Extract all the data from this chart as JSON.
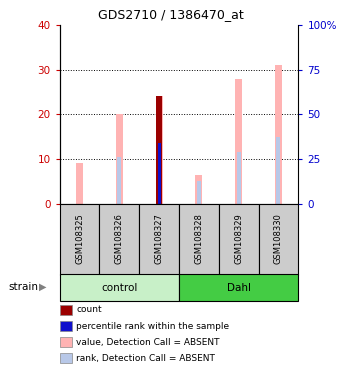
{
  "title": "GDS2710 / 1386470_at",
  "samples": [
    "GSM108325",
    "GSM108326",
    "GSM108327",
    "GSM108328",
    "GSM108329",
    "GSM108330"
  ],
  "ylim_left": [
    0,
    40
  ],
  "ylim_right": [
    0,
    100
  ],
  "yticks_left": [
    0,
    10,
    20,
    30,
    40
  ],
  "yticks_right": [
    0,
    25,
    50,
    75,
    100
  ],
  "ytick_labels_right": [
    "0",
    "25",
    "50",
    "75",
    "100%"
  ],
  "value_bars": [
    9.0,
    20.0,
    24.0,
    6.5,
    28.0,
    31.0
  ],
  "rank_bars": [
    null,
    10.5,
    13.5,
    5.0,
    11.5,
    15.0
  ],
  "count_bar_idx": 2,
  "count_bar_val": 24.0,
  "percentile_bar_idx": 2,
  "percentile_bar_val": 13.5,
  "value_bar_width": 0.18,
  "rank_bar_width": 0.1,
  "count_bar_width": 0.15,
  "percentile_bar_width": 0.07,
  "value_color": "#ffb3b3",
  "rank_color": "#b8c8e8",
  "count_color": "#9b0000",
  "percentile_color": "#1010cc",
  "bg_plot": "#ffffff",
  "bg_sample": "#cccccc",
  "bg_control": "#c8f0c8",
  "bg_dahl": "#44cc44",
  "left_tick_color": "#cc0000",
  "right_tick_color": "#0000cc",
  "strain_label": "strain",
  "control_label": "control",
  "dahl_label": "Dahl",
  "legend_items": [
    "count",
    "percentile rank within the sample",
    "value, Detection Call = ABSENT",
    "rank, Detection Call = ABSENT"
  ],
  "legend_colors": [
    "#9b0000",
    "#1010cc",
    "#ffb3b3",
    "#b8c8e8"
  ]
}
